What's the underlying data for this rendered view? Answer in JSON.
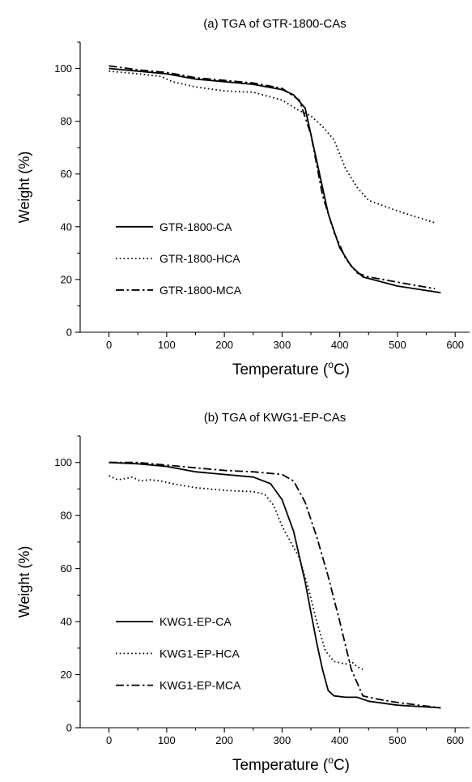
{
  "chart_data": [
    {
      "type": "line",
      "title": "(a) TGA of GTR-1800-CAs",
      "xlabel": "Temperature (°C)",
      "ylabel": "Weight (%)",
      "xlim": [
        -50,
        625
      ],
      "ylim": [
        0,
        110
      ],
      "xticks": [
        0,
        100,
        200,
        300,
        400,
        500,
        600
      ],
      "yticks": [
        0,
        20,
        40,
        60,
        80,
        100
      ],
      "grid": false,
      "legend_position": "center-left",
      "series": [
        {
          "name": "GTR-1800-CA",
          "style": "solid",
          "points": [
            [
              0,
              100
            ],
            [
              50,
              99
            ],
            [
              100,
              98
            ],
            [
              150,
              96
            ],
            [
              200,
              95
            ],
            [
              250,
              94
            ],
            [
              300,
              92
            ],
            [
              320,
              90
            ],
            [
              340,
              85
            ],
            [
              360,
              65
            ],
            [
              380,
              45
            ],
            [
              400,
              32
            ],
            [
              420,
              25
            ],
            [
              440,
              21
            ],
            [
              500,
              17.5
            ],
            [
              575,
              15
            ]
          ]
        },
        {
          "name": "GTR-1800-HCA",
          "style": "dotted",
          "points": [
            [
              0,
              99
            ],
            [
              50,
              98
            ],
            [
              90,
              97
            ],
            [
              110,
              95
            ],
            [
              150,
              93
            ],
            [
              200,
              91.5
            ],
            [
              250,
              91
            ],
            [
              300,
              88
            ],
            [
              330,
              84
            ],
            [
              350,
              82
            ],
            [
              370,
              78
            ],
            [
              390,
              73
            ],
            [
              410,
              62
            ],
            [
              430,
              55
            ],
            [
              450,
              50
            ],
            [
              500,
              46
            ],
            [
              565,
              41.5
            ]
          ]
        },
        {
          "name": "GTR-1800-MCA",
          "style": "dashdot",
          "points": [
            [
              0,
              101
            ],
            [
              50,
              99.5
            ],
            [
              100,
              98.5
            ],
            [
              150,
              96.5
            ],
            [
              200,
              95.5
            ],
            [
              250,
              94.5
            ],
            [
              300,
              92.5
            ],
            [
              330,
              88
            ],
            [
              350,
              75
            ],
            [
              370,
              52
            ],
            [
              390,
              38
            ],
            [
              410,
              28
            ],
            [
              430,
              22.5
            ],
            [
              450,
              21
            ],
            [
              500,
              19
            ],
            [
              565,
              16.5
            ]
          ]
        }
      ]
    },
    {
      "type": "line",
      "title": "(b) TGA of KWG1-EP-CAs",
      "xlabel": "Temperature (°C)",
      "ylabel": "Weight (%)",
      "xlim": [
        -50,
        625
      ],
      "ylim": [
        0,
        110
      ],
      "xticks": [
        0,
        100,
        200,
        300,
        400,
        500,
        600
      ],
      "yticks": [
        0,
        20,
        40,
        60,
        80,
        100
      ],
      "grid": false,
      "legend_position": "center-left",
      "series": [
        {
          "name": "KWG1-EP-CA",
          "style": "solid",
          "points": [
            [
              0,
              100
            ],
            [
              50,
              99.5
            ],
            [
              100,
              98.5
            ],
            [
              150,
              96.5
            ],
            [
              200,
              95.5
            ],
            [
              250,
              94.5
            ],
            [
              280,
              92
            ],
            [
              300,
              86
            ],
            [
              320,
              74
            ],
            [
              340,
              55
            ],
            [
              360,
              32
            ],
            [
              370,
              22
            ],
            [
              380,
              14
            ],
            [
              390,
              12
            ],
            [
              410,
              11.5
            ],
            [
              430,
              11.5
            ],
            [
              450,
              10
            ],
            [
              500,
              8.5
            ],
            [
              575,
              7.5
            ]
          ]
        },
        {
          "name": "KWG1-EP-HCA",
          "style": "dotted",
          "points": [
            [
              0,
              95
            ],
            [
              15,
              93.5
            ],
            [
              30,
              94
            ],
            [
              40,
              94.5
            ],
            [
              55,
              93
            ],
            [
              70,
              93.5
            ],
            [
              90,
              93
            ],
            [
              110,
              92
            ],
            [
              150,
              90.5
            ],
            [
              200,
              89.5
            ],
            [
              250,
              89
            ],
            [
              270,
              88
            ],
            [
              285,
              84
            ],
            [
              300,
              76
            ],
            [
              315,
              70
            ],
            [
              330,
              64
            ],
            [
              345,
              53
            ],
            [
              360,
              40
            ],
            [
              375,
              29
            ],
            [
              390,
              25
            ],
            [
              400,
              24.5
            ],
            [
              410,
              24
            ],
            [
              420,
              25
            ],
            [
              430,
              23
            ],
            [
              440,
              22
            ]
          ]
        },
        {
          "name": "KWG1-EP-MCA",
          "style": "dashdot",
          "points": [
            [
              0,
              100
            ],
            [
              50,
              100
            ],
            [
              100,
              99
            ],
            [
              150,
              98
            ],
            [
              200,
              97
            ],
            [
              250,
              96.5
            ],
            [
              300,
              95.5
            ],
            [
              320,
              93
            ],
            [
              340,
              85
            ],
            [
              360,
              72
            ],
            [
              380,
              57
            ],
            [
              400,
              40
            ],
            [
              420,
              22
            ],
            [
              440,
              12
            ],
            [
              460,
              11
            ],
            [
              500,
              9.5
            ],
            [
              575,
              7.5
            ]
          ]
        }
      ]
    }
  ]
}
